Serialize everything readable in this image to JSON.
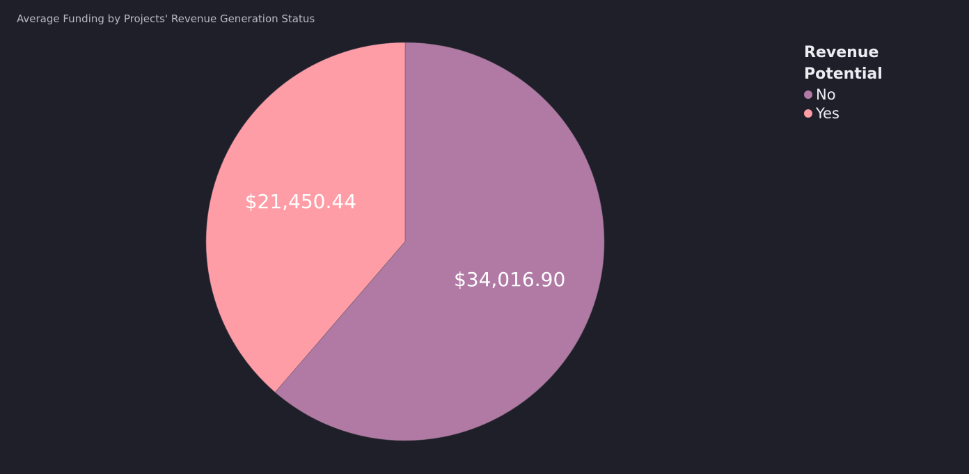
{
  "chart_data": {
    "type": "pie",
    "title": "Average Funding by Projects' Revenue Generation Status",
    "legend": {
      "title": "Revenue Potential",
      "placement": "top-right"
    },
    "slices": [
      {
        "label": "No",
        "value": 34016.9,
        "display": "$34,016.90",
        "color": "#b07aa5"
      },
      {
        "label": "Yes",
        "value": 21450.44,
        "display": "$21,450.44",
        "color": "#ff9da6"
      }
    ]
  }
}
